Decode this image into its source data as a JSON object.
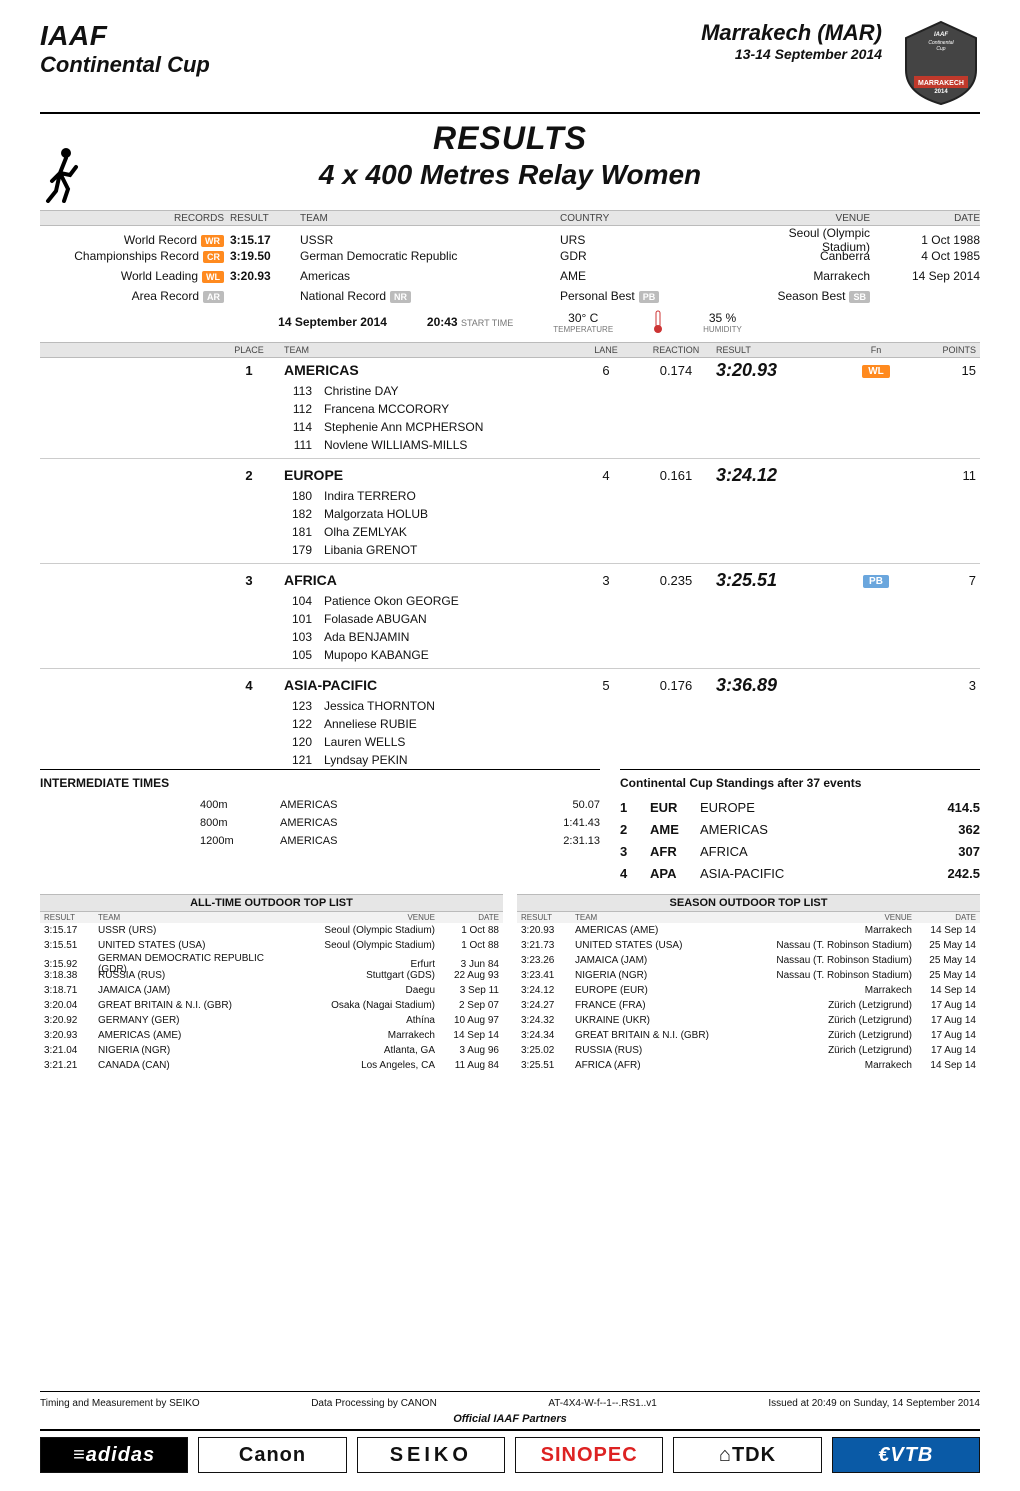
{
  "colors": {
    "badge_orange": "#ff8a1f",
    "badge_grey": "#bcbcbc",
    "badge_blue": "#6aa6dd",
    "rule": "#000000",
    "bg_light": "#e6e6e6",
    "text": "#111111",
    "sinopec_red": "#d22",
    "vtb_blue": "#0a5aa6"
  },
  "fonts": {
    "base_pt": 12,
    "title_pt": 32,
    "event_pt": 28
  },
  "header": {
    "fed": "IAAF",
    "series": "Continental Cup",
    "city": "Marrakech (MAR)",
    "date_range": "13-14 September 2014",
    "emblem_top": "IAAF Continental Cup",
    "emblem_bottom": "MARRAKECH 2014"
  },
  "title": {
    "results": "RESULTS",
    "event": "4 x 400 Metres Relay Women"
  },
  "records": {
    "head": {
      "records": "RECORDS",
      "result": "RESULT",
      "team": "TEAM",
      "country": "COUNTRY",
      "venue": "VENUE",
      "date": "DATE"
    },
    "rows": [
      {
        "label": "World Record",
        "badge": "WR",
        "time": "3:15.17",
        "team": "USSR",
        "country": "URS",
        "venue": "Seoul (Olympic Stadium)",
        "date": "1 Oct 1988"
      },
      {
        "label": "Championships Record",
        "badge": "CR",
        "time": "3:19.50",
        "team": "German Democratic Republic",
        "country": "GDR",
        "venue": "Canberra",
        "date": "4 Oct 1985"
      },
      {
        "label": "World Leading",
        "badge": "WL",
        "time": "3:20.93",
        "team": "Americas",
        "country": "AME",
        "venue": "Marrakech",
        "date": "14 Sep 2014"
      },
      {
        "label": "Area Record",
        "badge": "AR",
        "badge_grey": true,
        "time": "",
        "team": "National Record",
        "team_badge": "NR",
        "team_badge_grey": true,
        "country": "",
        "venue_label": "Personal Best",
        "venue_badge": "PB",
        "date_label": "Season Best",
        "date_badge": "SB"
      }
    ]
  },
  "conditions": {
    "date": "14 September 2014",
    "start_label": "START TIME",
    "start": "20:43",
    "temp": "30° C",
    "temp_label": "TEMPERATURE",
    "hum": "35 %",
    "hum_label": "HUMIDITY"
  },
  "results_head": {
    "place": "PLACE",
    "team": "TEAM",
    "lane": "LANE",
    "reaction": "REACTION",
    "result": "RESULT",
    "fn": "Fn",
    "points": "POINTS"
  },
  "teams": [
    {
      "place": "1",
      "name": "AMERICAS",
      "lane": "6",
      "reaction": "0.174",
      "result": "3:20.93",
      "fn": "WL",
      "fn_class": "orange",
      "points": "15",
      "athletes": [
        {
          "bib": "113",
          "name": "Christine DAY"
        },
        {
          "bib": "112",
          "name": "Francena MCCORORY"
        },
        {
          "bib": "114",
          "name": "Stephenie Ann MCPHERSON"
        },
        {
          "bib": "111",
          "name": "Novlene WILLIAMS-MILLS"
        }
      ]
    },
    {
      "place": "2",
      "name": "EUROPE",
      "lane": "4",
      "reaction": "0.161",
      "result": "3:24.12",
      "fn": "",
      "points": "11",
      "athletes": [
        {
          "bib": "180",
          "name": "Indira TERRERO"
        },
        {
          "bib": "182",
          "name": "Malgorzata HOLUB"
        },
        {
          "bib": "181",
          "name": "Olha ZEMLYAK"
        },
        {
          "bib": "179",
          "name": "Libania GRENOT"
        }
      ]
    },
    {
      "place": "3",
      "name": "AFRICA",
      "lane": "3",
      "reaction": "0.235",
      "result": "3:25.51",
      "fn": "PB",
      "fn_class": "blue",
      "points": "7",
      "athletes": [
        {
          "bib": "104",
          "name": "Patience Okon GEORGE"
        },
        {
          "bib": "101",
          "name": "Folasade ABUGAN"
        },
        {
          "bib": "103",
          "name": "Ada BENJAMIN"
        },
        {
          "bib": "105",
          "name": "Mupopo KABANGE"
        }
      ]
    },
    {
      "place": "4",
      "name": "ASIA-PACIFIC",
      "lane": "5",
      "reaction": "0.176",
      "result": "3:36.89",
      "fn": "",
      "points": "3",
      "athletes": [
        {
          "bib": "123",
          "name": "Jessica THORNTON"
        },
        {
          "bib": "122",
          "name": "Anneliese RUBIE"
        },
        {
          "bib": "120",
          "name": "Lauren WELLS"
        },
        {
          "bib": "121",
          "name": "Lyndsay PEKIN"
        }
      ]
    }
  ],
  "intermediate": {
    "title": "INTERMEDIATE TIMES",
    "rows": [
      {
        "dist": "400m",
        "team": "AMERICAS",
        "time": "50.07"
      },
      {
        "dist": "800m",
        "team": "AMERICAS",
        "time": "1:41.43"
      },
      {
        "dist": "1200m",
        "team": "AMERICAS",
        "time": "2:31.13"
      }
    ]
  },
  "standings": {
    "title": "Continental Cup Standings after 37 events",
    "rows": [
      {
        "rank": "1",
        "code": "EUR",
        "name": "EUROPE",
        "pts": "414.5"
      },
      {
        "rank": "2",
        "code": "AME",
        "name": "AMERICAS",
        "pts": "362"
      },
      {
        "rank": "3",
        "code": "AFR",
        "name": "AFRICA",
        "pts": "307"
      },
      {
        "rank": "4",
        "code": "APA",
        "name": "ASIA-PACIFIC",
        "pts": "242.5"
      }
    ]
  },
  "all_time": {
    "title": "ALL-TIME OUTDOOR TOP LIST",
    "head": {
      "result": "RESULT",
      "team": "TEAM",
      "venue": "VENUE",
      "date": "DATE"
    },
    "rows": [
      {
        "result": "3:15.17",
        "team": "USSR (URS)",
        "venue": "Seoul (Olympic Stadium)",
        "date": "1 Oct 88"
      },
      {
        "result": "3:15.51",
        "team": "UNITED STATES (USA)",
        "venue": "Seoul (Olympic Stadium)",
        "date": "1 Oct 88"
      },
      {
        "result": "3:15.92",
        "team": "GERMAN DEMOCRATIC REPUBLIC (GDR)",
        "venue": "Erfurt",
        "date": "3 Jun 84"
      },
      {
        "result": "3:18.38",
        "team": "RUSSIA (RUS)",
        "venue": "Stuttgart (GDS)",
        "date": "22 Aug 93"
      },
      {
        "result": "3:18.71",
        "team": "JAMAICA (JAM)",
        "venue": "Daegu",
        "date": "3 Sep 11"
      },
      {
        "result": "3:20.04",
        "team": "GREAT BRITAIN & N.I. (GBR)",
        "venue": "Osaka (Nagai Stadium)",
        "date": "2 Sep 07"
      },
      {
        "result": "3:20.92",
        "team": "GERMANY (GER)",
        "venue": "Athína",
        "date": "10 Aug 97"
      },
      {
        "result": "3:20.93",
        "team": "AMERICAS (AME)",
        "venue": "Marrakech",
        "date": "14 Sep 14"
      },
      {
        "result": "3:21.04",
        "team": "NIGERIA (NGR)",
        "venue": "Atlanta, GA",
        "date": "3 Aug 96"
      },
      {
        "result": "3:21.21",
        "team": "CANADA (CAN)",
        "venue": "Los Angeles, CA",
        "date": "11 Aug 84"
      }
    ]
  },
  "season": {
    "title": "SEASON OUTDOOR TOP LIST",
    "head": {
      "result": "RESULT",
      "team": "TEAM",
      "venue": "VENUE",
      "date": "DATE"
    },
    "rows": [
      {
        "result": "3:20.93",
        "team": "AMERICAS (AME)",
        "venue": "Marrakech",
        "date": "14 Sep 14"
      },
      {
        "result": "3:21.73",
        "team": "UNITED STATES (USA)",
        "venue": "Nassau (T. Robinson Stadium)",
        "date": "25 May 14"
      },
      {
        "result": "3:23.26",
        "team": "JAMAICA (JAM)",
        "venue": "Nassau (T. Robinson Stadium)",
        "date": "25 May 14"
      },
      {
        "result": "3:23.41",
        "team": "NIGERIA (NGR)",
        "venue": "Nassau (T. Robinson Stadium)",
        "date": "25 May 14"
      },
      {
        "result": "3:24.12",
        "team": "EUROPE (EUR)",
        "venue": "Marrakech",
        "date": "14 Sep 14"
      },
      {
        "result": "3:24.27",
        "team": "FRANCE (FRA)",
        "venue": "Zürich (Letzigrund)",
        "date": "17 Aug 14"
      },
      {
        "result": "3:24.32",
        "team": "UKRAINE (UKR)",
        "venue": "Zürich (Letzigrund)",
        "date": "17 Aug 14"
      },
      {
        "result": "3:24.34",
        "team": "GREAT BRITAIN & N.I. (GBR)",
        "venue": "Zürich (Letzigrund)",
        "date": "17 Aug 14"
      },
      {
        "result": "3:25.02",
        "team": "RUSSIA (RUS)",
        "venue": "Zürich (Letzigrund)",
        "date": "17 Aug 14"
      },
      {
        "result": "3:25.51",
        "team": "AFRICA (AFR)",
        "venue": "Marrakech",
        "date": "14 Sep 14"
      }
    ]
  },
  "footer": {
    "timing": "Timing and Measurement by SEIKO",
    "processing": "Data Processing by CANON",
    "code": "AT-4X4-W-f--1--.RS1..v1",
    "issued": "Issued at 20:49 on Sunday, 14 September  2014",
    "partners_title": "Official IAAF Partners",
    "sponsors": [
      "≡adidas",
      "Canon",
      "SEIKO",
      "SINOPEC",
      "⌂TDK",
      "€VTB"
    ]
  }
}
